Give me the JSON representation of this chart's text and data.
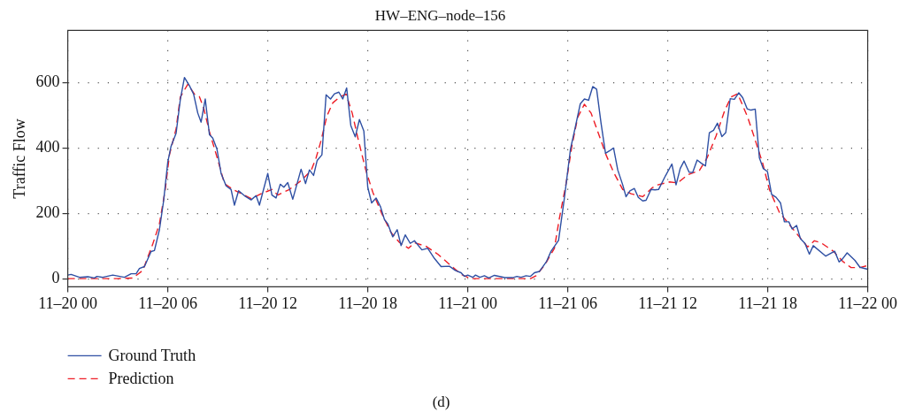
{
  "chart_data": {
    "type": "line",
    "title": "HW–ENG–node–156",
    "ylabel": "Traffic Flow",
    "annotations": [
      "(d)"
    ],
    "xlim": [
      "--11-20T00:00",
      "--11-22T00:00"
    ],
    "xticks": [
      {
        "value": "--11-20T00:00",
        "label": "11–20 00"
      },
      {
        "value": "--11-20T06:00",
        "label": "11–20 06"
      },
      {
        "value": "--11-20T12:00",
        "label": "11–20 12"
      },
      {
        "value": "--11-20T18:00",
        "label": "11–20 18"
      },
      {
        "value": "--11-21T00:00",
        "label": "11–21 00"
      },
      {
        "value": "--11-21T06:00",
        "label": "11–21 06"
      },
      {
        "value": "--11-21T12:00",
        "label": "11–21 12"
      },
      {
        "value": "--11-21T18:00",
        "label": "11–21 18"
      },
      {
        "value": "--11-22T00:00",
        "label": "11–22 00"
      }
    ],
    "ylim": [
      -25,
      760
    ],
    "yticks": [
      0,
      200,
      400,
      600
    ],
    "grid": true,
    "legend": "bottom left",
    "marker": "none",
    "series": [
      {
        "name": "Ground Truth",
        "color": "#2e4fa3",
        "line_style": "solid",
        "x": [
          "--11-20T00:00",
          "--11-20T00:12",
          "--11-20T00:42",
          "--11-20T01:12",
          "--11-20T01:36",
          "--11-20T01:45",
          "--11-20T02:06",
          "--11-20T02:42",
          "--11-20T03:24",
          "--11-20T03:48",
          "--11-20T04:06",
          "--11-20T04:18",
          "--11-20T04:36",
          "--11-20T05:00",
          "--11-20T05:12",
          "--11-20T05:30",
          "--11-20T05:45",
          "--11-20T06:00",
          "--11-20T06:12",
          "--11-20T06:30",
          "--11-20T06:45",
          "--11-20T07:00",
          "--11-20T07:18",
          "--11-20T07:33",
          "--11-20T07:48",
          "--11-20T08:00",
          "--11-20T08:15",
          "--11-20T08:30",
          "--11-20T08:42",
          "--11-20T08:57",
          "--11-20T09:12",
          "--11-20T09:30",
          "--11-20T09:48",
          "--11-20T10:00",
          "--11-20T10:15",
          "--11-20T10:36",
          "--11-20T11:00",
          "--11-20T11:18",
          "--11-20T11:30",
          "--11-20T12:00",
          "--11-20T12:15",
          "--11-20T12:30",
          "--11-20T12:45",
          "--11-20T12:58",
          "--11-20T13:12",
          "--11-20T13:30",
          "--11-20T14:00",
          "--11-20T14:16",
          "--11-20T14:30",
          "--11-20T14:45",
          "--11-20T14:58",
          "--11-20T15:15",
          "--11-20T15:30",
          "--11-20T15:46",
          "--11-20T16:00",
          "--11-20T16:16",
          "--11-20T16:30",
          "--11-20T16:44",
          "--11-20T16:59",
          "--11-20T17:15",
          "--11-20T17:30",
          "--11-20T17:46",
          "--11-20T18:00",
          "--11-20T18:14",
          "--11-20T18:30",
          "--11-20T18:46",
          "--11-20T19:00",
          "--11-20T19:12",
          "--11-20T19:30",
          "--11-20T19:46",
          "--11-20T20:00",
          "--11-20T20:15",
          "--11-20T20:33",
          "--11-20T20:48",
          "--11-20T21:15",
          "--11-20T21:36",
          "--11-20T22:00",
          "--11-20T22:24",
          "--11-20T22:54",
          "--11-20T23:15",
          "--11-20T23:36",
          "--11-20T23:48",
          "--11-21T00:00",
          "--11-21T00:18",
          "--11-21T00:28",
          "--11-21T00:44",
          "--11-21T01:00",
          "--11-21T01:16",
          "--11-21T01:36",
          "--11-21T02:14",
          "--11-21T02:42",
          "--11-21T02:57",
          "--11-21T03:12",
          "--11-21T03:30",
          "--11-21T03:46",
          "--11-21T04:00",
          "--11-21T04:18",
          "--11-21T04:44",
          "--11-21T05:00",
          "--11-21T05:27",
          "--11-21T05:48",
          "--11-21T06:10",
          "--11-21T06:26",
          "--11-21T06:45",
          "--11-21T07:00",
          "--11-21T07:15",
          "--11-21T07:30",
          "--11-21T07:44",
          "--11-21T08:00",
          "--11-21T08:16",
          "--11-21T08:30",
          "--11-21T08:45",
          "--11-21T09:00",
          "--11-21T09:18",
          "--11-21T09:30",
          "--11-21T09:44",
          "--11-21T10:00",
          "--11-21T10:14",
          "--11-21T10:30",
          "--11-21T10:42",
          "--11-21T11:00",
          "--11-21T11:14",
          "--11-21T11:27",
          "--11-21T11:52",
          "--11-21T12:15",
          "--11-21T12:30",
          "--11-21T12:45",
          "--11-21T12:59",
          "--11-21T13:17",
          "--11-21T13:30",
          "--11-21T13:46",
          "--11-21T14:00",
          "--11-21T14:16",
          "--11-21T14:30",
          "--11-21T14:45",
          "--11-21T14:59",
          "--11-21T15:15",
          "--11-21T15:29",
          "--11-21T15:45",
          "--11-21T16:00",
          "--11-21T16:16",
          "--11-21T16:30",
          "--11-21T16:46",
          "--11-21T17:00",
          "--11-21T17:15",
          "--11-21T17:30",
          "--11-21T17:44",
          "--11-21T17:59",
          "--11-21T18:14",
          "--11-21T18:30",
          "--11-21T18:46",
          "--11-21T19:00",
          "--11-21T19:16",
          "--11-21T19:28",
          "--11-21T19:44",
          "--11-21T19:58",
          "--11-21T20:14",
          "--11-21T20:30",
          "--11-21T20:44",
          "--11-21T21:29",
          "--11-21T22:01",
          "--11-21T22:17",
          "--11-21T22:28",
          "--11-21T22:46",
          "--11-21T23:14",
          "--11-21T23:32",
          "--11-21T23:59"
        ],
        "values": [
          11,
          13,
          4,
          6,
          2,
          7,
          4,
          11,
          4,
          15,
          15,
          31,
          37,
          83,
          86,
          150,
          238,
          357,
          406,
          445,
          547,
          616,
          591,
          565,
          507,
          479,
          550,
          441,
          430,
          397,
          322,
          284,
          273,
          225,
          269,
          254,
          241,
          254,
          225,
          322,
          256,
          247,
          289,
          280,
          294,
          243,
          335,
          291,
          333,
          316,
          362,
          379,
          563,
          550,
          566,
          571,
          550,
          584,
          469,
          434,
          487,
          452,
          280,
          232,
          247,
          220,
          181,
          168,
          128,
          150,
          101,
          134,
          108,
          116,
          88,
          93,
          62,
          37,
          38,
          25,
          18,
          7,
          11,
          4,
          11,
          4,
          9,
          2,
          10,
          3,
          3,
          7,
          4,
          9,
          7,
          18,
          22,
          53,
          84,
          117,
          247,
          397,
          459,
          535,
          550,
          546,
          588,
          580,
          476,
          384,
          391,
          400,
          333,
          287,
          251,
          269,
          276,
          249,
          238,
          240,
          273,
          272,
          273,
          315,
          351,
          287,
          337,
          360,
          326,
          325,
          363,
          354,
          345,
          447,
          454,
          476,
          435,
          447,
          551,
          549,
          569,
          554,
          520,
          516,
          519,
          370,
          337,
          328,
          258,
          249,
          232,
          174,
          174,
          152,
          163,
          122,
          108,
          75,
          101,
          69,
          84,
          51,
          59,
          79,
          56,
          35,
          29
        ]
      },
      {
        "name": "Prediction",
        "color": "#ee1c25",
        "line_style": "dashed",
        "x": [
          "--11-20T00:00",
          "--11-20T01:00",
          "--11-20T02:00",
          "--11-20T03:00",
          "--11-20T03:54",
          "--11-20T04:30",
          "--11-20T05:06",
          "--11-20T05:30",
          "--11-20T05:51",
          "--11-20T06:06",
          "--11-20T06:30",
          "--11-20T06:45",
          "--11-20T07:12",
          "--11-20T07:36",
          "--11-20T07:54",
          "--11-20T08:10",
          "--11-20T08:30",
          "--11-20T08:58",
          "--11-20T09:24",
          "--11-20T09:57",
          "--11-20T10:30",
          "--11-20T11:00",
          "--11-20T11:36",
          "--11-20T12:15",
          "--11-20T12:36",
          "--11-20T13:18",
          "--11-20T14:00",
          "--11-20T14:36",
          "--11-20T14:54",
          "--11-20T15:12",
          "--11-20T15:33",
          "--11-20T15:54",
          "--11-20T16:21",
          "--11-20T16:42",
          "--11-20T17:04",
          "--11-20T17:24",
          "--11-20T17:52",
          "--11-20T18:18",
          "--11-20T18:51",
          "--11-20T19:24",
          "--11-20T19:55",
          "--11-20T20:27",
          "--11-20T20:48",
          "--11-20T21:30",
          "--11-20T22:12",
          "--11-20T22:54",
          "--11-20T23:36",
          "--11-21T00:12",
          "--11-21T01:00",
          "--11-21T02:00",
          "--11-21T03:00",
          "--11-21T03:46",
          "--11-21T04:06",
          "--11-21T04:39",
          "--11-21T05:12",
          "--11-21T05:30",
          "--11-21T05:54",
          "--11-21T06:15",
          "--11-21T06:36",
          "--11-21T07:00",
          "--11-21T07:24",
          "--11-21T07:52",
          "--11-21T08:18",
          "--11-21T08:45",
          "--11-21T09:18",
          "--11-21T09:48",
          "--11-21T10:30",
          "--11-21T11:04",
          "--11-21T11:24",
          "--11-21T12:06",
          "--11-21T12:36",
          "--11-21T13:12",
          "--11-21T13:54",
          "--11-21T14:22",
          "--11-21T14:54",
          "--11-21T15:24",
          "--11-21T15:48",
          "--11-21T16:12",
          "--11-21T16:48",
          "--11-21T17:12",
          "--11-21T17:42",
          "--11-21T18:06",
          "--11-21T18:42",
          "--11-21T19:24",
          "--11-21T19:58",
          "--11-21T20:24",
          "--11-21T20:48",
          "--11-21T21:12",
          "--11-21T21:56",
          "--11-21T22:30",
          "--11-21T23:00",
          "--11-21T23:32",
          "--11-21T23:59"
        ],
        "values": [
          0,
          0,
          0,
          0,
          2,
          25,
          106,
          168,
          273,
          379,
          459,
          556,
          595,
          565,
          557,
          520,
          450,
          370,
          291,
          272,
          258,
          245,
          260,
          273,
          256,
          273,
          300,
          331,
          370,
          423,
          498,
          538,
          557,
          565,
          507,
          432,
          335,
          265,
          198,
          141,
          110,
          93,
          110,
          99,
          75,
          44,
          13,
          0,
          0,
          0,
          0,
          0,
          9,
          44,
          93,
          185,
          291,
          406,
          494,
          534,
          507,
          441,
          379,
          326,
          273,
          260,
          251,
          278,
          287,
          296,
          293,
          318,
          331,
          370,
          437,
          512,
          556,
          566,
          494,
          432,
          353,
          273,
          203,
          159,
          124,
          97,
          116,
          110,
          84,
          53,
          34,
          34,
          40
        ]
      }
    ]
  }
}
